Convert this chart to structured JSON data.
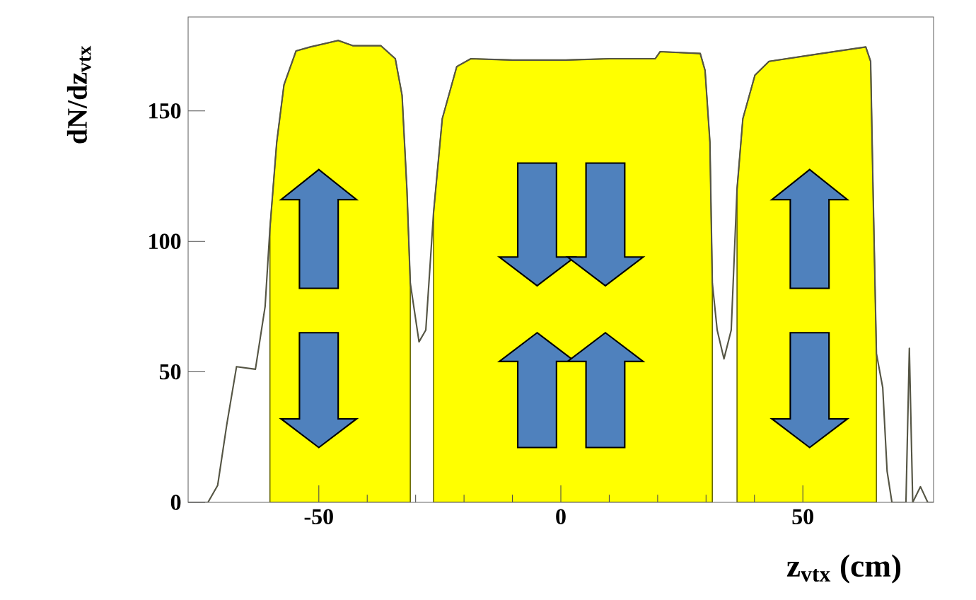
{
  "chart_data": {
    "type": "line",
    "xlabel": "z$_{vtx}$ (cm)",
    "ylabel": "dN/dz$_{vtx}$",
    "xlim": [
      -77,
      77
    ],
    "ylim": [
      0,
      186
    ],
    "xticks": [
      -50,
      0,
      50
    ],
    "yticks": [
      0,
      50,
      100,
      150
    ],
    "series": [
      {
        "type": "area",
        "color": "#ffff00",
        "x": [
          -60.1,
          -58.7,
          -57.2,
          -54.7,
          -51.8,
          -46,
          -43,
          -37.2,
          -34.2,
          -32.8,
          -31.8,
          -31.1
        ],
        "values": [
          105,
          138,
          160,
          173,
          174.5,
          177,
          175,
          175,
          170,
          156,
          120,
          84
        ]
      },
      {
        "type": "area",
        "color": "#ffff00",
        "x": [
          -26.3,
          -24.5,
          -21.5,
          -18.6,
          -10,
          1,
          10,
          19.5,
          20.5,
          28.8,
          29.8,
          30.8,
          31.3
        ],
        "values": [
          111,
          147,
          167,
          170,
          169.5,
          169.5,
          170,
          170,
          172.7,
          172,
          165.5,
          138,
          84
        ]
      },
      {
        "type": "area",
        "color": "#ffff00",
        "x": [
          36.4,
          37.6,
          40.1,
          43,
          53.8,
          63,
          64,
          64.5,
          65.2
        ],
        "values": [
          120,
          147,
          163.7,
          169,
          172,
          174.5,
          169,
          120,
          57
        ]
      },
      {
        "color": "#555544",
        "x": [
          -77,
          -72.9,
          -70.9,
          -69,
          -67,
          -63.1,
          -61.1,
          -60.1,
          -58.7,
          -57.2,
          -54.7,
          -51.8,
          -46,
          -43,
          -37.2,
          -34.2,
          -32.8,
          -31.8,
          -31.1,
          -29.3,
          -27.9,
          -26.3,
          -24.5,
          -21.5,
          -18.6,
          -10,
          1,
          10,
          19.5,
          20.5,
          28.8,
          29.8,
          30.8,
          31.3,
          32.3,
          33.7,
          35.2,
          36.4,
          37.6,
          40.1,
          43,
          53.8,
          63,
          64,
          64.5,
          65.2,
          66.5,
          67.4,
          68.4,
          71.3,
          72,
          72.7,
          74.3,
          75.8,
          77
        ],
        "values": [
          0,
          0,
          6.5,
          30,
          52,
          51,
          75,
          105,
          138,
          160,
          173,
          174.5,
          177,
          175,
          175,
          170,
          156,
          120,
          84,
          61.5,
          66,
          111,
          147,
          167,
          170,
          169.5,
          169.5,
          170,
          170,
          172.7,
          172,
          165.5,
          138,
          84,
          66,
          55,
          66,
          120,
          147,
          163.7,
          169,
          172,
          174.5,
          169,
          120,
          57,
          44,
          12,
          0,
          0,
          59,
          0,
          6,
          0,
          0
        ]
      }
    ]
  }
}
